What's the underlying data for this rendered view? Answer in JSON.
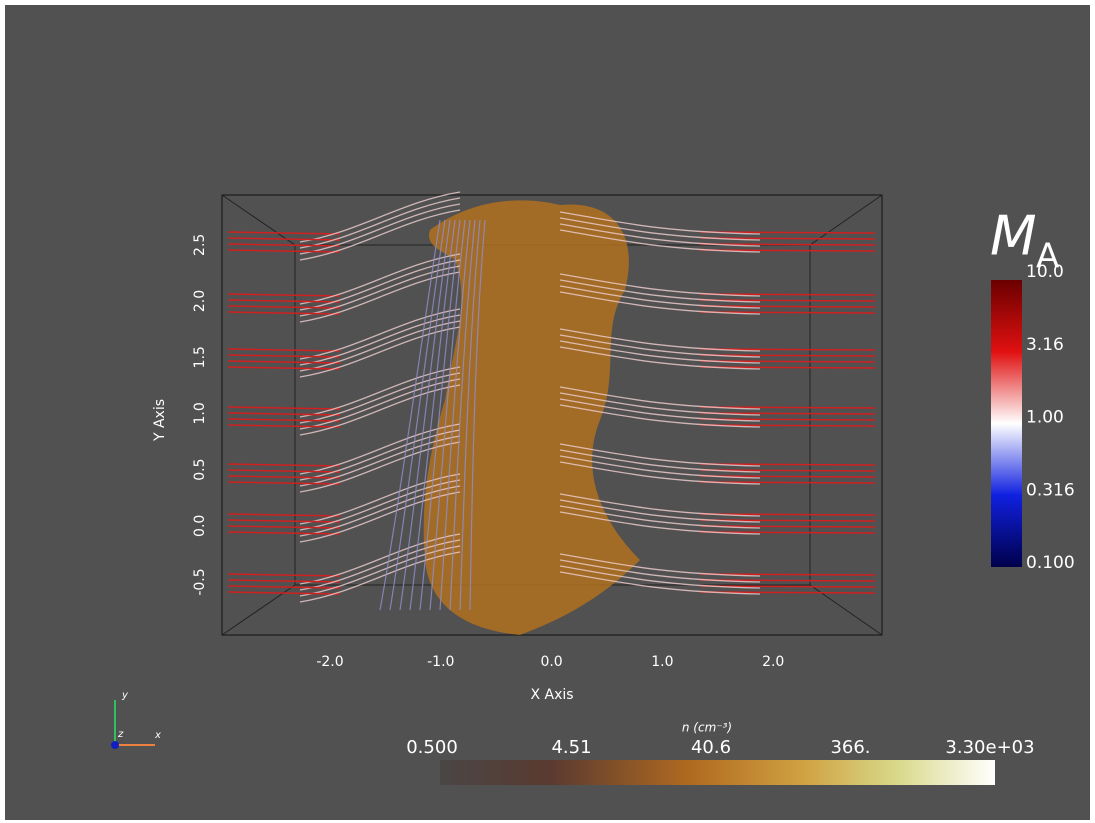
{
  "x_axis": {
    "label": "X Axis",
    "ticks": [
      "-2.0",
      "-1.0",
      "0.0",
      "1.0",
      "2.0"
    ]
  },
  "y_axis": {
    "label": "Y Axis",
    "ticks": [
      "-0.5",
      "0.0",
      "0.5",
      "1.0",
      "1.5",
      "2.0",
      "2.5"
    ]
  },
  "orientation": {
    "y": "y",
    "z": "z",
    "x": "x"
  },
  "mach_colorbar": {
    "title_main": "M",
    "title_sub": "A",
    "ticks": [
      "10.0",
      "3.16",
      "1.00",
      "0.316",
      "0.100"
    ]
  },
  "density_colorbar": {
    "title": "n (cm⁻³)",
    "ticks": [
      "0.500",
      "4.51",
      "40.6",
      "366.",
      "3.30e+03"
    ]
  }
}
